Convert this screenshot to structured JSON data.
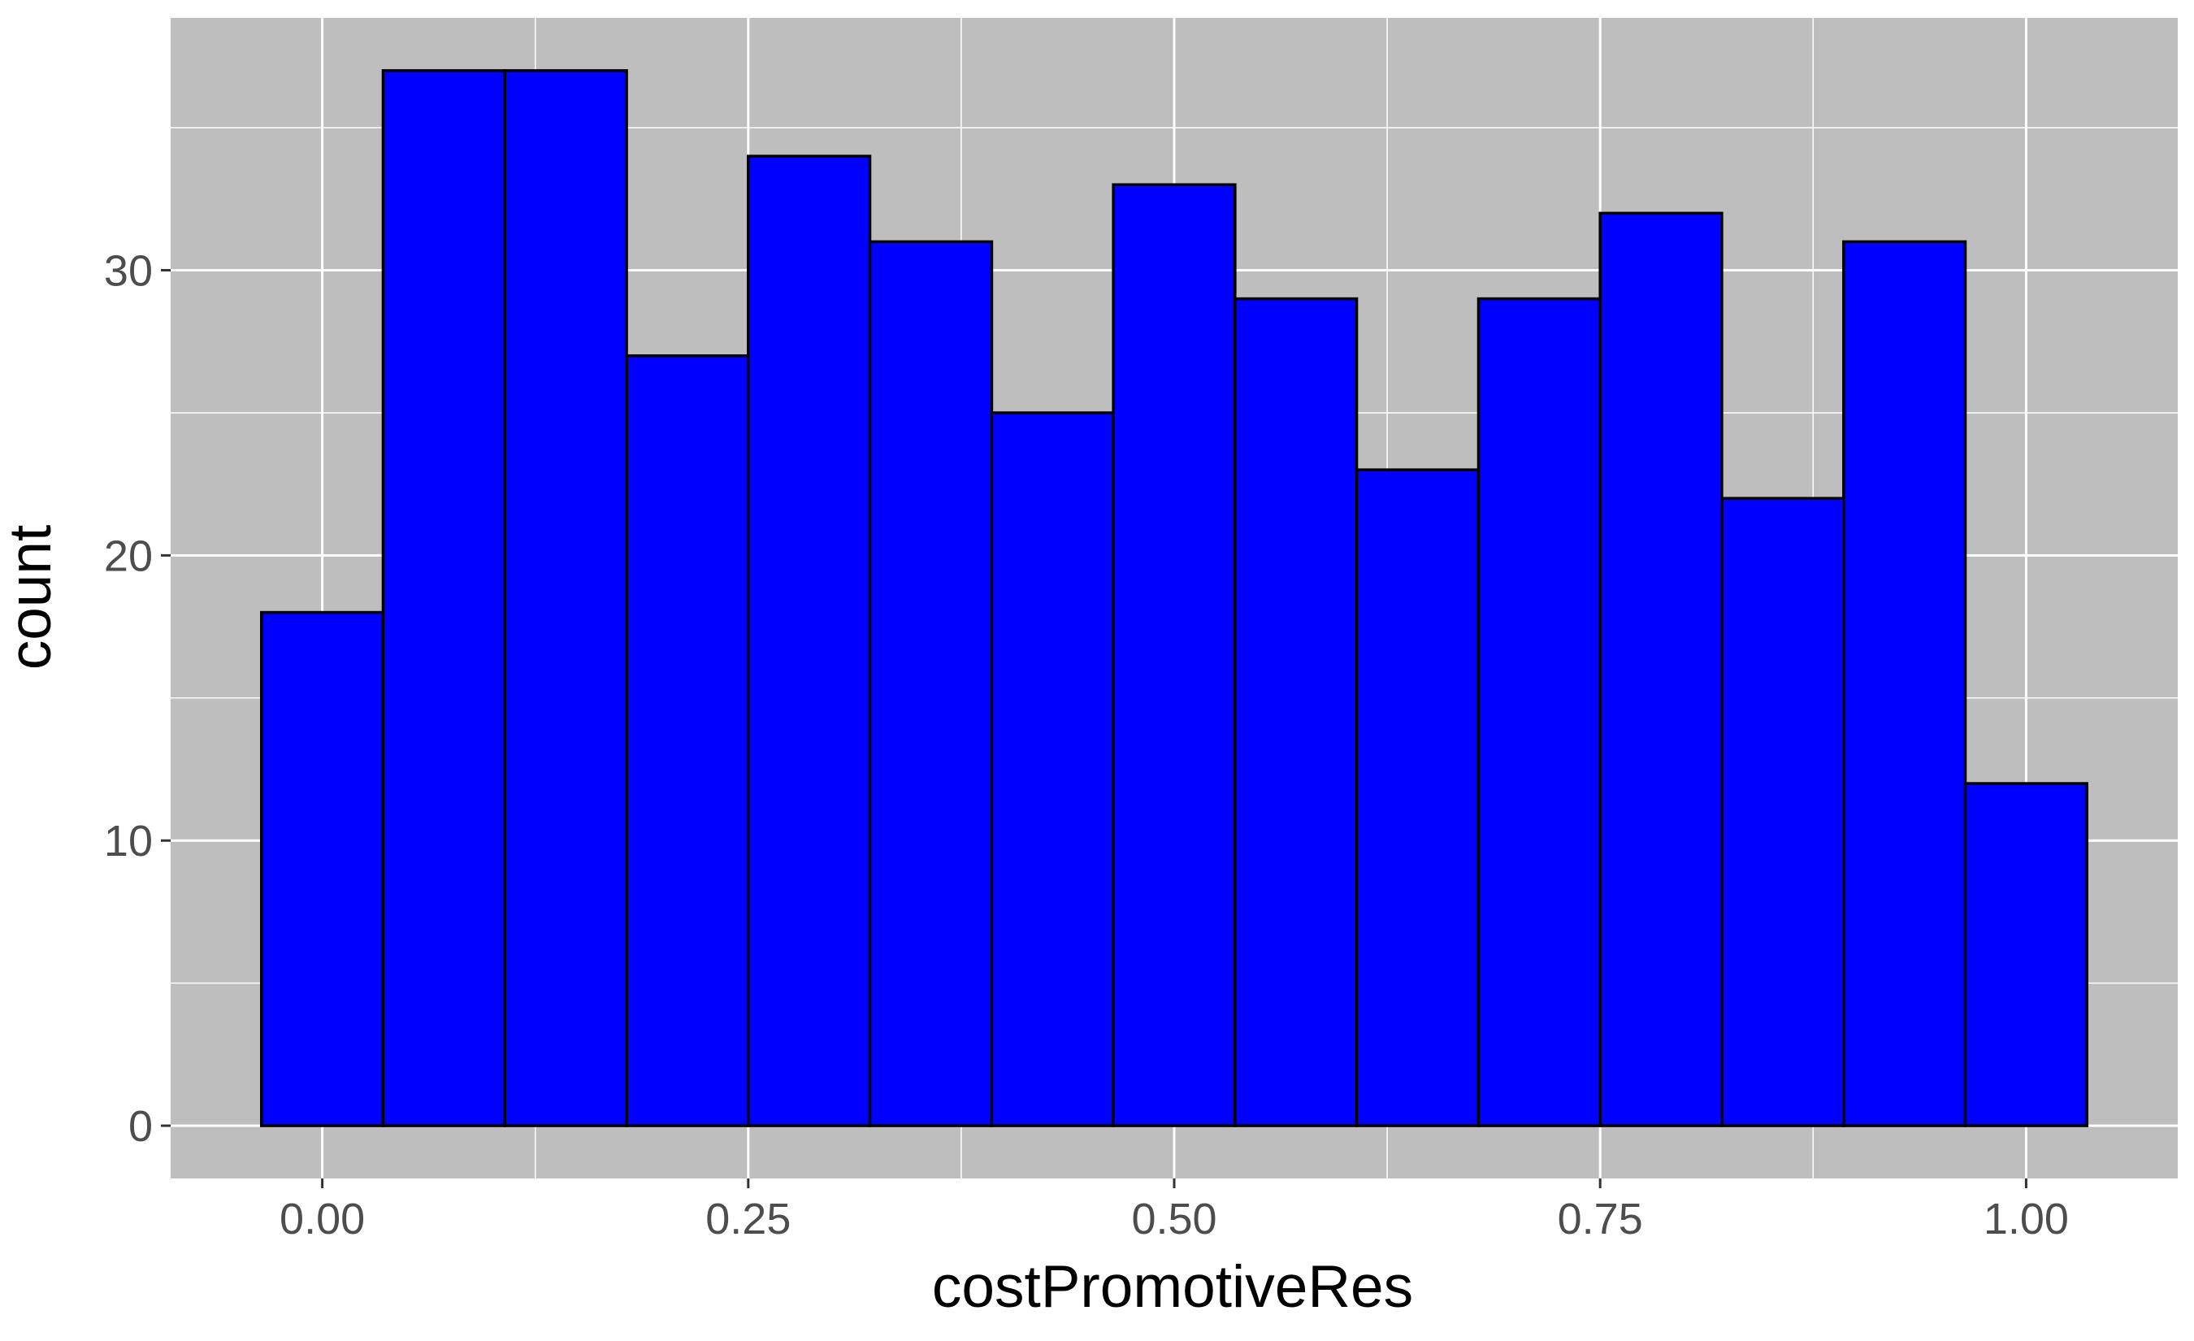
{
  "chart_data": {
    "type": "bar",
    "subtype": "histogram",
    "title": "",
    "xlabel": "costPromotiveRes",
    "ylabel": "count",
    "bins": [
      {
        "x_min": -0.0357,
        "x_max": 0.0357,
        "count": 18
      },
      {
        "x_min": 0.0357,
        "x_max": 0.1071,
        "count": 37
      },
      {
        "x_min": 0.1071,
        "x_max": 0.1786,
        "count": 37
      },
      {
        "x_min": 0.1786,
        "x_max": 0.25,
        "count": 27
      },
      {
        "x_min": 0.25,
        "x_max": 0.3214,
        "count": 34
      },
      {
        "x_min": 0.3214,
        "x_max": 0.3929,
        "count": 31
      },
      {
        "x_min": 0.3929,
        "x_max": 0.4643,
        "count": 25
      },
      {
        "x_min": 0.4643,
        "x_max": 0.5357,
        "count": 33
      },
      {
        "x_min": 0.5357,
        "x_max": 0.6071,
        "count": 29
      },
      {
        "x_min": 0.6071,
        "x_max": 0.6786,
        "count": 23
      },
      {
        "x_min": 0.6786,
        "x_max": 0.75,
        "count": 29
      },
      {
        "x_min": 0.75,
        "x_max": 0.8214,
        "count": 32
      },
      {
        "x_min": 0.8214,
        "x_max": 0.8929,
        "count": 22
      },
      {
        "x_min": 0.8929,
        "x_max": 0.9643,
        "count": 31
      },
      {
        "x_min": 0.9643,
        "x_max": 1.0357,
        "count": 12
      }
    ],
    "xlim": [
      -0.089,
      1.089
    ],
    "ylim": [
      -1.85,
      38.85
    ],
    "x_ticks": [
      0,
      0.25,
      0.5,
      0.75,
      1
    ],
    "x_tick_labels": [
      "0.00",
      "0.25",
      "0.50",
      "0.75",
      "1.00"
    ],
    "y_ticks": [
      0,
      10,
      20,
      30
    ],
    "y_tick_labels": [
      "0",
      "10",
      "20",
      "30"
    ],
    "grid": true,
    "colors": {
      "bar_fill": "#0000ff",
      "bar_outline": "#000000",
      "panel_background": "#bebebe",
      "grid": "#ffffff",
      "tick_label": "#4d4d4d"
    }
  }
}
